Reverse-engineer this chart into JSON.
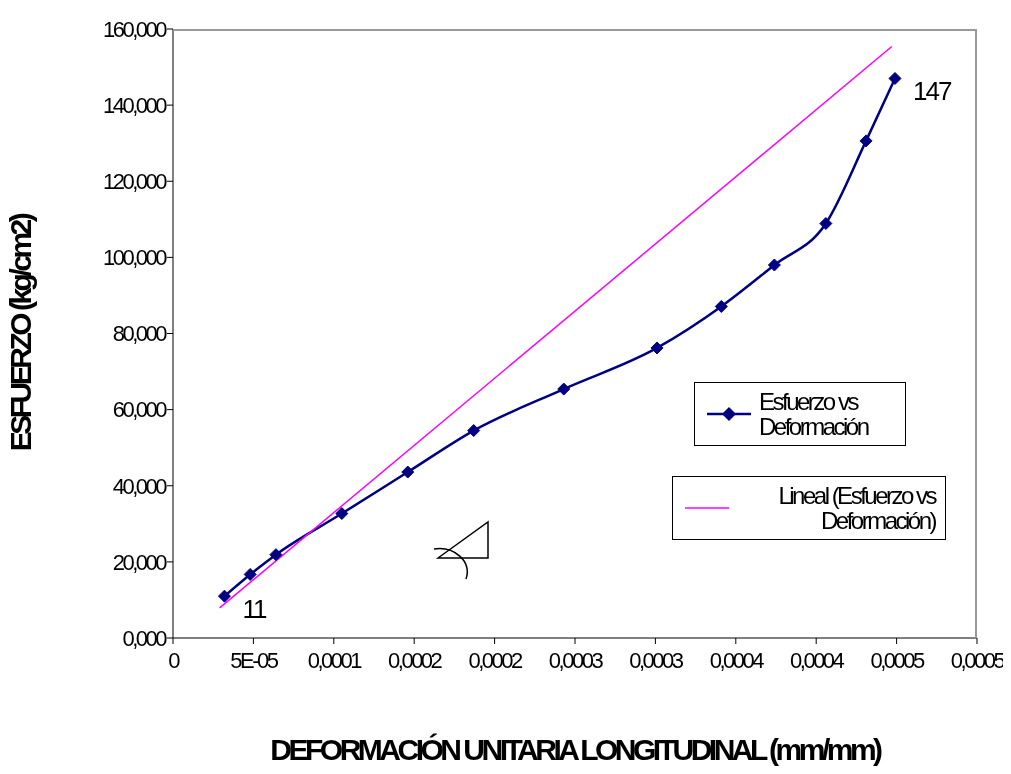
{
  "chart_data": {
    "type": "line",
    "xlabel": "DEFORMACIÓN UNITARIA LONGITUDINAL (mm/mm)",
    "ylabel": "ESFUERZO (kg/cm2)",
    "xlim": [
      0,
      0.0005
    ],
    "xticks": [
      {
        "value": 0,
        "label": "0"
      },
      {
        "value": 5e-05,
        "label": "5E-05"
      },
      {
        "value": 0.0001,
        "label": "0,0001"
      },
      {
        "value": 0.00015,
        "label": "0,0002"
      },
      {
        "value": 0.0002,
        "label": "0,0002"
      },
      {
        "value": 0.00025,
        "label": "0,0003"
      },
      {
        "value": 0.0003,
        "label": "0,0003"
      },
      {
        "value": 0.00035,
        "label": "0,0004"
      },
      {
        "value": 0.0004,
        "label": "0,0004"
      },
      {
        "value": 0.00045,
        "label": "0,0005"
      },
      {
        "value": 0.0005,
        "label": "0,0005"
      }
    ],
    "ylim": [
      0,
      160
    ],
    "yticks": [
      {
        "value": 0,
        "label": "0,000"
      },
      {
        "value": 20,
        "label": "20,000"
      },
      {
        "value": 40,
        "label": "40,000"
      },
      {
        "value": 60,
        "label": "60,000"
      },
      {
        "value": 80,
        "label": "80,000"
      },
      {
        "value": 100,
        "label": "100,000"
      },
      {
        "value": 120,
        "label": "120,000"
      },
      {
        "value": 140,
        "label": "140,000"
      },
      {
        "value": 160,
        "label": "160,000"
      }
    ],
    "grid": false,
    "legend": "right",
    "marker": "diamond",
    "line_style": "solid",
    "series": [
      {
        "name": "Esfuerzo vs Deformación",
        "color": "#000080",
        "x": [
          3.2e-05,
          4.8e-05,
          6.4e-05,
          0.000105,
          0.000146,
          0.000187,
          0.000243,
          0.000301,
          0.000341,
          0.000374,
          0.000406,
          0.000431,
          0.000449
        ],
        "values": [
          11,
          16.7,
          21.9,
          32.7,
          43.6,
          54.5,
          65.4,
          76.2,
          87.1,
          98.0,
          108.9,
          130.6,
          147
        ],
        "value_labels": [
          "11",
          null,
          null,
          null,
          null,
          null,
          null,
          null,
          null,
          null,
          null,
          null,
          "147"
        ]
      },
      {
        "name": "Lineal (Esfuerzo vs Deformación)",
        "type": "line",
        "marker": "none",
        "color": "#ff00ff",
        "x": [
          2.9e-05,
          0.000447
        ],
        "values": [
          7.9,
          155.4
        ]
      }
    ]
  }
}
